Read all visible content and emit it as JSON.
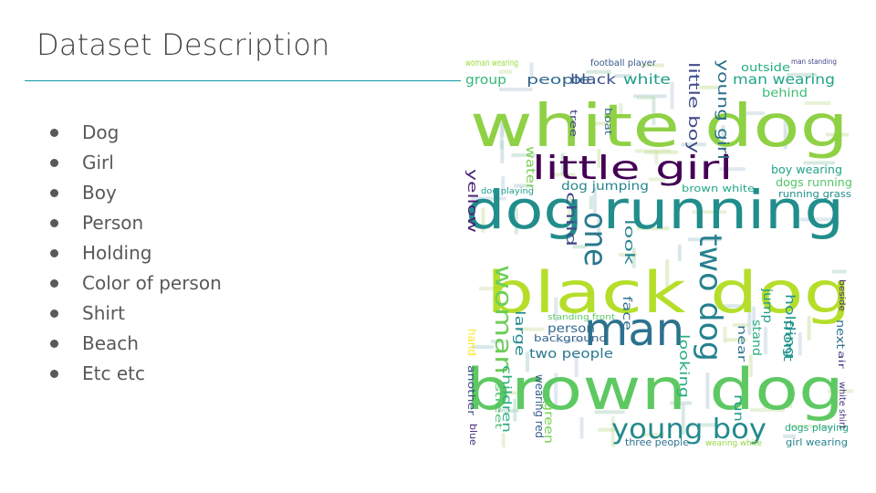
{
  "slide": {
    "title": "Dataset Description",
    "bullets": [
      "Dog",
      "Girl",
      "Boy",
      "Person",
      "Holding",
      "Color of person",
      "Shirt",
      "Beach",
      "Etc etc"
    ]
  },
  "wordcloud": {
    "words": [
      {
        "text": "white dog",
        "color": "#8fd144"
      },
      {
        "text": "dog running",
        "color": "#218d8c"
      },
      {
        "text": "black dog",
        "color": "#b5de2b"
      },
      {
        "text": "brown dog",
        "color": "#5ec962"
      },
      {
        "text": "man",
        "color": "#2c728e"
      },
      {
        "text": "little girl",
        "color": "#440154"
      },
      {
        "text": "young boy",
        "color": "#238a8d"
      },
      {
        "text": "woman",
        "color": "#6ece58"
      },
      {
        "text": "one",
        "color": "#2a788e"
      },
      {
        "text": "two dog",
        "color": "#26828e"
      },
      {
        "text": "people",
        "color": "#31688e"
      },
      {
        "text": "black",
        "color": "#3b528b"
      },
      {
        "text": "white",
        "color": "#1f9e89"
      },
      {
        "text": "group",
        "color": "#35b779"
      },
      {
        "text": "man wearing",
        "color": "#20a486"
      },
      {
        "text": "outside",
        "color": "#27ad81"
      },
      {
        "text": "behind",
        "color": "#3dbc74"
      },
      {
        "text": "young girl",
        "color": "#2d708e"
      },
      {
        "text": "little boy",
        "color": "#3e4989"
      },
      {
        "text": "boy wearing",
        "color": "#1fa188"
      },
      {
        "text": "dogs running",
        "color": "#52c569"
      },
      {
        "text": "dog jumping",
        "color": "#25858e"
      },
      {
        "text": "brown white",
        "color": "#22a884"
      },
      {
        "text": "two people",
        "color": "#2a788e"
      },
      {
        "text": "person",
        "color": "#31688e"
      },
      {
        "text": "background",
        "color": "#34618d"
      },
      {
        "text": "holding",
        "color": "#1f968b"
      },
      {
        "text": "look",
        "color": "#25848e"
      },
      {
        "text": "child",
        "color": "#3f4788"
      },
      {
        "text": "yellow",
        "color": "#482475"
      },
      {
        "text": "water",
        "color": "#7ad151"
      },
      {
        "text": "large",
        "color": "#23898e"
      },
      {
        "text": "children",
        "color": "#29af7f"
      },
      {
        "text": "wearing red",
        "color": "#365d8d"
      },
      {
        "text": "green",
        "color": "#7ad151"
      },
      {
        "text": "three people",
        "color": "#2c728e"
      },
      {
        "text": "wearing white",
        "color": "#90d743"
      },
      {
        "text": "girl wearing",
        "color": "#26828e"
      },
      {
        "text": "dogs playing",
        "color": "#22a884"
      },
      {
        "text": "football player",
        "color": "#38598c"
      },
      {
        "text": "woman wearing",
        "color": "#9fda3a"
      },
      {
        "text": "man standing",
        "color": "#404387"
      },
      {
        "text": "front",
        "color": "#21918c"
      },
      {
        "text": "jump",
        "color": "#1e9b8a"
      },
      {
        "text": "face",
        "color": "#2e6f8e"
      },
      {
        "text": "hand",
        "color": "#fde725"
      },
      {
        "text": "another",
        "color": "#3e4a89"
      },
      {
        "text": "blue shirt",
        "color": "#472d7b"
      },
      {
        "text": "white shirt",
        "color": "#46337e"
      },
      {
        "text": "next",
        "color": "#2d718e"
      },
      {
        "text": "air",
        "color": "#433e85"
      },
      {
        "text": "beside",
        "color": "#482878"
      },
      {
        "text": "stand",
        "color": "#29af7f"
      },
      {
        "text": "near",
        "color": "#2d708e"
      },
      {
        "text": "run",
        "color": "#1e9c89"
      },
      {
        "text": "looking",
        "color": "#27ad81"
      },
      {
        "text": "standing front",
        "color": "#5cc863"
      },
      {
        "text": "running grass",
        "color": "#21918c"
      },
      {
        "text": "dog playing",
        "color": "#1e9d89"
      },
      {
        "text": "street",
        "color": "#4ac16d"
      },
      {
        "text": "boat",
        "color": "#31688e"
      },
      {
        "text": "tree",
        "color": "#414487"
      }
    ]
  }
}
